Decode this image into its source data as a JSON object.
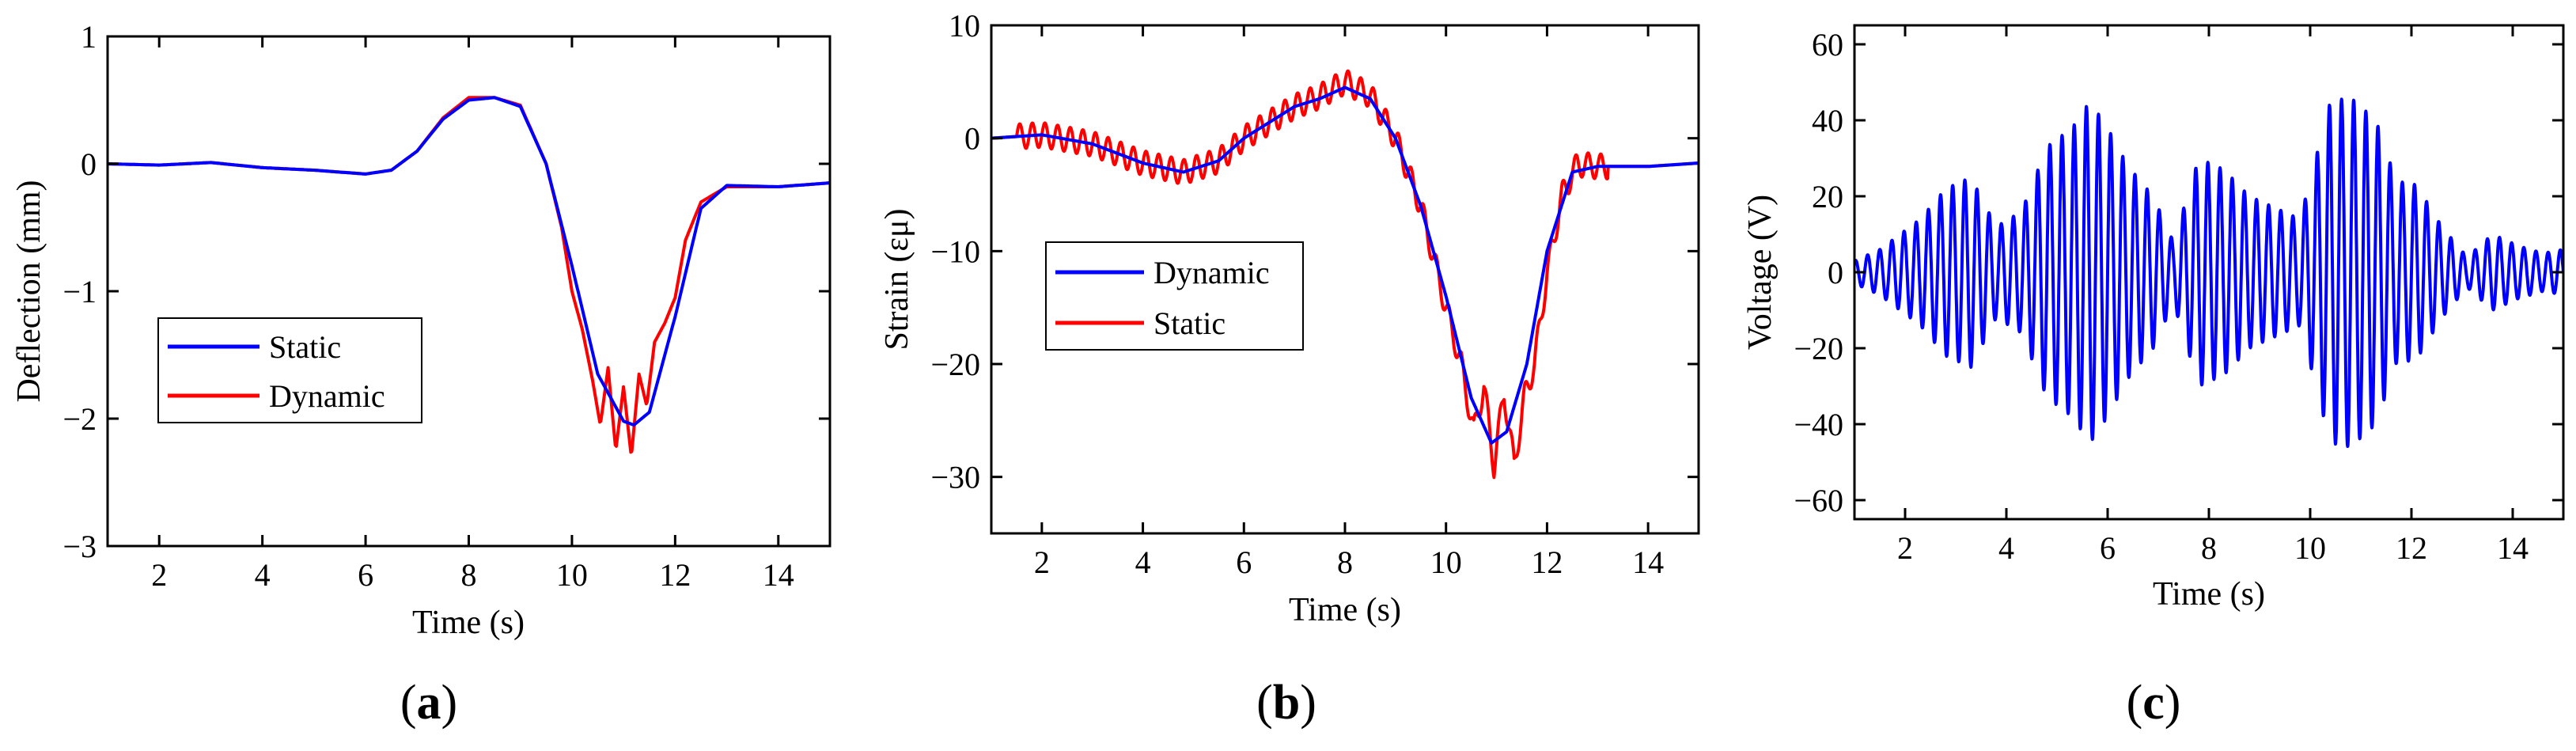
{
  "figure": {
    "panel_labels": [
      {
        "open": "(",
        "letter": "a",
        "close": ")"
      },
      {
        "open": "(",
        "letter": "b",
        "close": ")"
      },
      {
        "open": "(",
        "letter": "c",
        "close": ")"
      }
    ]
  },
  "chart_data": [
    {
      "type": "line",
      "id": "a",
      "xlabel": "Time (s)",
      "ylabel": "Deflection (mm)",
      "xlim": [
        1,
        15
      ],
      "ylim": [
        -3,
        1
      ],
      "xticks": [
        2,
        4,
        6,
        8,
        10,
        12,
        14
      ],
      "yticks": [
        -3,
        -2,
        -1,
        0,
        1
      ],
      "ytick_labels": [
        "−3",
        "−2",
        "−1",
        "0",
        "1"
      ],
      "legend": {
        "placement": "lower-left",
        "entries": [
          "Static",
          "Dynamic"
        ]
      },
      "series": [
        {
          "name": "Static",
          "color": "#0000ff",
          "x": [
            1,
            2,
            3,
            4,
            5,
            6,
            6.5,
            7,
            7.5,
            8,
            8.5,
            9,
            9.5,
            10,
            10.5,
            11,
            11.2,
            11.5,
            12,
            12.5,
            13,
            14,
            15
          ],
          "y": [
            0,
            -0.01,
            0.01,
            -0.03,
            -0.05,
            -0.08,
            -0.05,
            0.1,
            0.35,
            0.5,
            0.52,
            0.45,
            0,
            -0.8,
            -1.65,
            -2.02,
            -2.05,
            -1.95,
            -1.2,
            -0.35,
            -0.17,
            -0.18,
            -0.15
          ]
        },
        {
          "name": "Dynamic",
          "color": "#ff0000",
          "x": [
            1,
            2,
            3,
            4,
            5,
            6,
            6.5,
            7,
            7.5,
            8,
            8.5,
            9,
            9.5,
            9.8,
            10,
            10.2,
            10.4,
            10.55,
            10.7,
            10.85,
            11,
            11.15,
            11.3,
            11.45,
            11.6,
            11.8,
            12,
            12.2,
            12.5,
            13,
            14,
            15
          ],
          "y": [
            0,
            -0.01,
            0.01,
            -0.03,
            -0.05,
            -0.08,
            -0.05,
            0.1,
            0.36,
            0.52,
            0.52,
            0.46,
            0,
            -0.5,
            -1.0,
            -1.3,
            -1.7,
            -2.05,
            -1.6,
            -2.25,
            -1.75,
            -2.3,
            -1.65,
            -1.9,
            -1.4,
            -1.25,
            -1.05,
            -0.6,
            -0.3,
            -0.18,
            -0.18,
            -0.15
          ]
        }
      ]
    },
    {
      "type": "line",
      "id": "b",
      "xlabel": "Time (s)",
      "ylabel": "Strain (εμ)",
      "xlim": [
        1,
        15
      ],
      "ylim": [
        -35,
        10
      ],
      "xticks": [
        2,
        4,
        6,
        8,
        10,
        12,
        14
      ],
      "yticks": [
        -30,
        -20,
        -10,
        0,
        10
      ],
      "ytick_labels": [
        "−30",
        "−20",
        "−10",
        "0",
        "10"
      ],
      "legend": {
        "placement": "center-left",
        "entries": [
          "Dynamic",
          "Static"
        ]
      },
      "series": [
        {
          "name": "Dynamic",
          "color": "#0000ff",
          "x": [
            1,
            2,
            3,
            4,
            4.8,
            5.5,
            6,
            7,
            7.5,
            8,
            8.5,
            9,
            9.5,
            10,
            10.5,
            10.9,
            11.2,
            11.6,
            12,
            12.5,
            13,
            14,
            15
          ],
          "y": [
            0,
            0.3,
            -0.5,
            -2.2,
            -3,
            -2,
            0,
            2.8,
            3.5,
            4.5,
            3.5,
            0,
            -6,
            -14,
            -23,
            -27,
            -26,
            -20,
            -10,
            -3,
            -2.5,
            -2.5,
            -2.2
          ]
        },
        {
          "name": "Static",
          "color": "#ff0000",
          "x": [
            1,
            2,
            3,
            4,
            4.8,
            5.5,
            6,
            7,
            7.5,
            8,
            8.5,
            9,
            9.5,
            10,
            10.3,
            10.55,
            10.75,
            10.95,
            11.15,
            11.35,
            11.55,
            11.75,
            12,
            12.3,
            12.6,
            13,
            14,
            15
          ],
          "y": [
            0,
            0.3,
            -0.5,
            -2.2,
            -3,
            -2,
            0,
            2.8,
            3.7,
            5,
            3.8,
            0,
            -6,
            -15,
            -20,
            -26,
            -22,
            -29,
            -22.5,
            -29,
            -23,
            -20,
            -12,
            -5,
            -2.3,
            -2.5,
            -2.5,
            -2.2
          ]
        }
      ],
      "oscillation": {
        "series": "Static",
        "x_range": [
          1.5,
          13.2
        ],
        "period_s": 0.25,
        "amplitude": 1.1
      }
    },
    {
      "type": "line",
      "id": "c",
      "xlabel": "Time (s)",
      "ylabel": "Voltage (V)",
      "xlim": [
        1,
        15
      ],
      "ylim": [
        -65,
        65
      ],
      "xticks": [
        2,
        4,
        6,
        8,
        10,
        12,
        14
      ],
      "yticks": [
        -60,
        -40,
        -20,
        0,
        20,
        40,
        60
      ],
      "ytick_labels": [
        "−60",
        "−40",
        "−20",
        "0",
        "20",
        "40",
        "60"
      ],
      "series": [
        {
          "name": "Voltage",
          "color": "#0000ff",
          "carrier_period_s": 0.24,
          "envelope_t": [
            1,
            1.5,
            2.3,
            2.8,
            3.3,
            3.8,
            4.3,
            4.8,
            5.3,
            5.65,
            6.0,
            6.4,
            6.9,
            7.3,
            7.8,
            8.3,
            8.8,
            9.3,
            9.8,
            10.4,
            10.8,
            11.3,
            11.7,
            12.1,
            12.6,
            13.1,
            13.6,
            14.1,
            14.6,
            15
          ],
          "envelope_v": [
            3,
            6,
            14,
            22,
            25,
            12,
            16,
            33,
            38,
            45,
            38,
            28,
            20,
            8,
            30,
            27,
            20,
            17,
            14,
            45,
            46,
            40,
            24,
            23,
            12,
            4,
            10,
            7,
            5,
            6
          ]
        }
      ]
    }
  ]
}
